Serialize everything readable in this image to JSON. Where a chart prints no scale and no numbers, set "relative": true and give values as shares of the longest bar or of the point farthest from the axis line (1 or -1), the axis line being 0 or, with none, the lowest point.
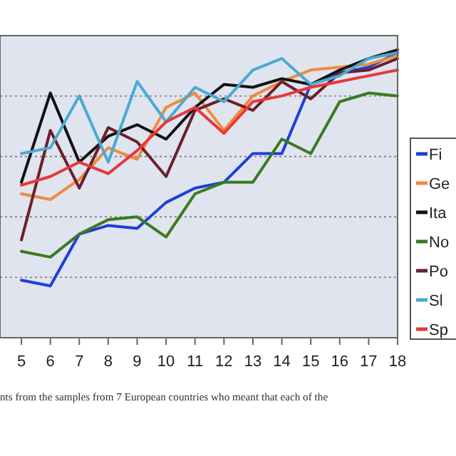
{
  "chart_data": {
    "type": "line",
    "relative": true,
    "x": [
      5,
      6,
      7,
      8,
      9,
      10,
      11,
      12,
      13,
      14,
      15,
      16,
      17,
      18
    ],
    "xlim": [
      4.26,
      18
    ],
    "xticks": [
      5,
      6,
      7,
      8,
      9,
      10,
      11,
      12,
      13,
      14,
      15,
      16,
      17,
      18
    ],
    "grid": "y",
    "legend": "right",
    "marker": "none",
    "line_style": "solid",
    "series": [
      {
        "name": "Fi",
        "color": "#1f3fd8",
        "values": [
          0.2,
          0.18,
          0.36,
          0.39,
          0.38,
          0.47,
          0.52,
          0.54,
          0.64,
          0.64,
          0.88,
          0.92,
          0.94,
          0.99
        ]
      },
      {
        "name": "Ge",
        "color": "#f08a3c",
        "values": [
          0.5,
          0.48,
          0.55,
          0.66,
          0.62,
          0.8,
          0.85,
          0.72,
          0.84,
          0.89,
          0.93,
          0.94,
          0.95,
          0.98
        ]
      },
      {
        "name": "Ita",
        "color": "#111111",
        "values": [
          0.54,
          0.85,
          0.61,
          0.7,
          0.74,
          0.69,
          0.8,
          0.88,
          0.87,
          0.9,
          0.88,
          0.93,
          0.97,
          1
        ]
      },
      {
        "name": "No",
        "color": "#3a7a1f",
        "values": [
          0.3,
          0.28,
          0.36,
          0.41,
          0.42,
          0.35,
          0.5,
          0.54,
          0.54,
          0.69,
          0.64,
          0.82,
          0.85,
          0.84
        ]
      },
      {
        "name": "Po",
        "color": "#6b1f2a",
        "values": [
          0.34,
          0.72,
          0.52,
          0.73,
          0.68,
          0.56,
          0.79,
          0.83,
          0.79,
          0.89,
          0.83,
          0.92,
          0.93,
          0.97
        ]
      },
      {
        "name": "Sl",
        "color": "#4aaad0",
        "values": [
          0.64,
          0.66,
          0.84,
          0.61,
          0.89,
          0.75,
          0.87,
          0.82,
          0.93,
          0.97,
          0.88,
          0.91,
          0.97,
          0.99
        ]
      },
      {
        "name": "Sp",
        "color": "#e8373a",
        "values": [
          0.53,
          0.56,
          0.61,
          0.57,
          0.65,
          0.75,
          0.8,
          0.71,
          0.82,
          0.84,
          0.87,
          0.89,
          0.91,
          0.93
        ]
      }
    ],
    "annotations": [
      "nts from the samples from 7 European countries who meant that each of the"
    ]
  }
}
